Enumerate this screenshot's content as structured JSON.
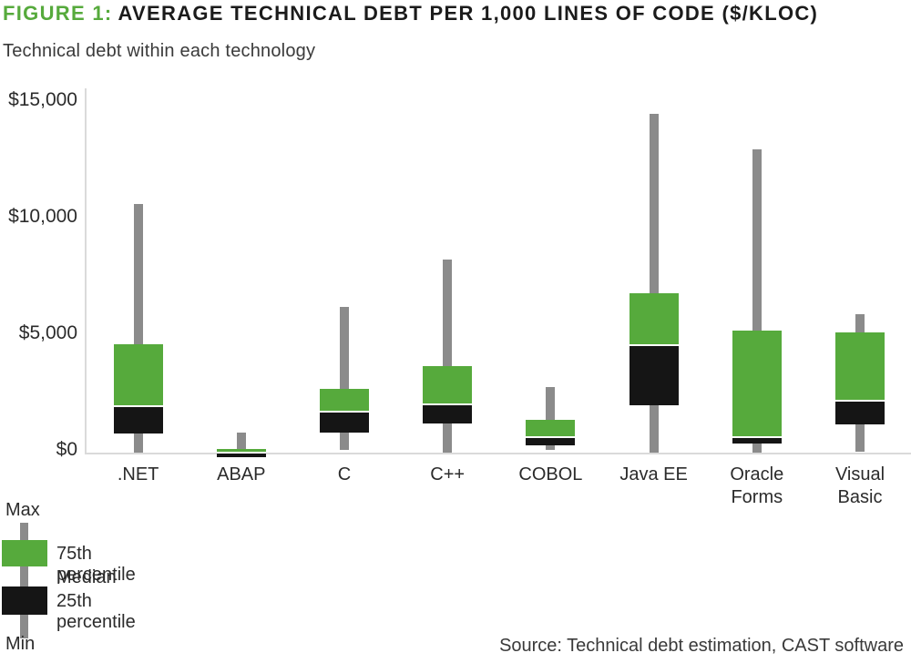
{
  "header": {
    "figure_label": "FIGURE 1:",
    "title": "AVERAGE TECHNICAL DEBT PER 1,000 LINES OF CODE ($/KLOC)",
    "subtitle": "Technical debt within each technology"
  },
  "legend": {
    "max_label": "Max",
    "min_label": "Min",
    "items": [
      "75th percentile",
      "Median",
      "25th percentile"
    ]
  },
  "source": "Source: Technical debt estimation, CAST software",
  "chart_data": {
    "type": "box",
    "title": "Technical debt within each technology",
    "unit": "$/KLOC",
    "ylim": [
      0,
      15000
    ],
    "yticks": [
      0,
      5000,
      10000,
      15000
    ],
    "ytick_labels": [
      "$0",
      "$5,000",
      "$10,000",
      "$15,000"
    ],
    "grid": false,
    "legend_position": "bottom-left",
    "categories": [
      ".NET",
      "ABAP",
      "C",
      "C++",
      "COBOL",
      "Java EE",
      "Oracle Forms",
      "Visual Basic"
    ],
    "series": [
      {
        "name": ".NET",
        "min": 0,
        "p25": 800,
        "median": 2000,
        "p75": 4600,
        "max": 10600
      },
      {
        "name": "ABAP",
        "min": 0,
        "p25": 0,
        "median": 50,
        "p75": 160,
        "max": 850
      },
      {
        "name": "C",
        "min": 100,
        "p25": 850,
        "median": 1800,
        "p75": 2700,
        "max": 6200
      },
      {
        "name": "C++",
        "min": 0,
        "p25": 1250,
        "median": 2100,
        "p75": 3700,
        "max": 8200
      },
      {
        "name": "COBOL",
        "min": 100,
        "p25": 300,
        "median": 700,
        "p75": 1400,
        "max": 2800
      },
      {
        "name": "Java EE",
        "min": 0,
        "p25": 2000,
        "median": 4600,
        "p75": 6800,
        "max": 14400
      },
      {
        "name": "Oracle Forms",
        "min": 0,
        "p25": 400,
        "median": 700,
        "p75": 5200,
        "max": 12900
      },
      {
        "name": "Visual Basic",
        "min": 50,
        "p25": 1200,
        "median": 2250,
        "p75": 5100,
        "max": 5900
      }
    ],
    "colors": {
      "upper_box": "#56AA3C",
      "lower_box": "#151515",
      "whisker": "#8B8B8B",
      "axis": "#DADADA",
      "accent_green": "#56AA3C"
    }
  }
}
